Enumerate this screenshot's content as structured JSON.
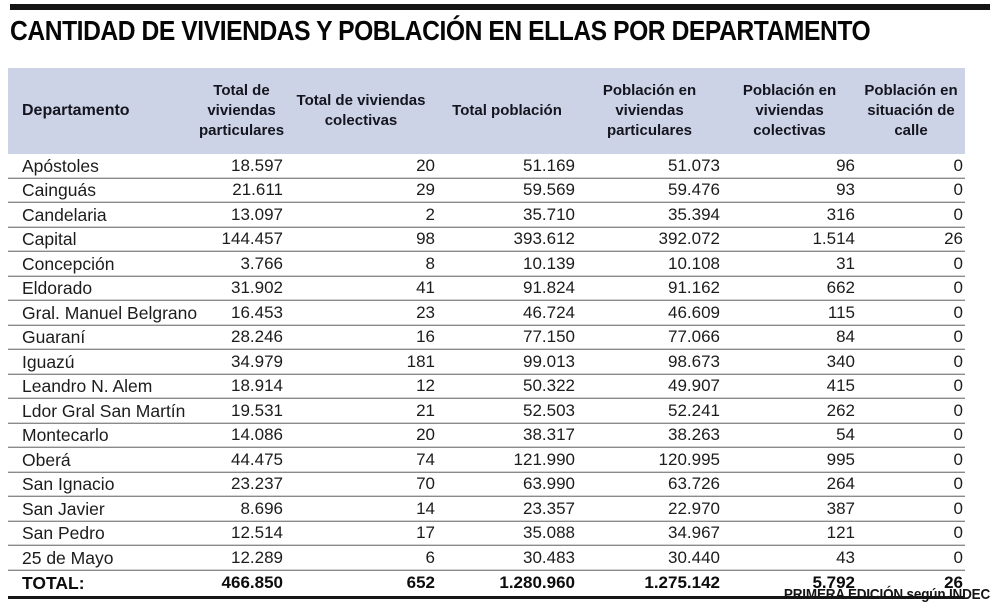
{
  "title": "CANTIDAD DE VIVIENDAS Y POBLACIÓN EN ELLAS POR DEPARTAMENTO",
  "source_note": "PRIMERA EDICIÓN según INDEC",
  "colors": {
    "header_bg": "#ccd3e6",
    "top_bar": "#141414",
    "row_rule_dark": "#8a8a8a",
    "row_rule_light": "#d2d2d2",
    "total_rule": "#161616"
  },
  "chart_data": {
    "type": "table",
    "title": "CANTIDAD DE VIVIENDAS Y POBLACIÓN EN ELLAS POR DEPARTAMENTO",
    "source": "PRIMERA EDICIÓN según INDEC",
    "columns": [
      "Departamento",
      "Total de viviendas particulares",
      "Total de viviendas colectivas",
      "Total población",
      "Población en viviendas particulares",
      "Población en viviendas colectivas",
      "Población en situación de calle"
    ],
    "rows": [
      [
        "Apóstoles",
        "18.597",
        "20",
        "51.169",
        "51.073",
        "96",
        "0"
      ],
      [
        "Cainguás",
        "21.611",
        "29",
        "59.569",
        "59.476",
        "93",
        "0"
      ],
      [
        "Candelaria",
        "13.097",
        "2",
        "35.710",
        "35.394",
        "316",
        "0"
      ],
      [
        "Capital",
        "144.457",
        "98",
        "393.612",
        "392.072",
        "1.514",
        "26"
      ],
      [
        "Concepción",
        "3.766",
        "8",
        "10.139",
        "10.108",
        "31",
        "0"
      ],
      [
        "Eldorado",
        "31.902",
        "41",
        "91.824",
        "91.162",
        "662",
        "0"
      ],
      [
        "Gral. Manuel Belgrano",
        "16.453",
        "23",
        "46.724",
        "46.609",
        "115",
        "0"
      ],
      [
        "Guaraní",
        "28.246",
        "16",
        "77.150",
        "77.066",
        "84",
        "0"
      ],
      [
        "Iguazú",
        "34.979",
        "181",
        "99.013",
        "98.673",
        "340",
        "0"
      ],
      [
        "Leandro N. Alem",
        "18.914",
        "12",
        "50.322",
        "49.907",
        "415",
        "0"
      ],
      [
        "Ldor Gral San Martín",
        "19.531",
        "21",
        "52.503",
        "52.241",
        "262",
        "0"
      ],
      [
        "Montecarlo",
        "14.086",
        "20",
        "38.317",
        "38.263",
        "54",
        "0"
      ],
      [
        "Oberá",
        "44.475",
        "74",
        "121.990",
        "120.995",
        "995",
        "0"
      ],
      [
        "San Ignacio",
        "23.237",
        "70",
        "63.990",
        "63.726",
        "264",
        "0"
      ],
      [
        "San Javier",
        "8.696",
        "14",
        "23.357",
        "22.970",
        "387",
        "0"
      ],
      [
        "San Pedro",
        "12.514",
        "17",
        "35.088",
        "34.967",
        "121",
        "0"
      ],
      [
        "25 de Mayo",
        "12.289",
        "6",
        "30.483",
        "30.440",
        "43",
        "0"
      ]
    ],
    "total_row": [
      "TOTAL:",
      "466.850",
      "652",
      "1.280.960",
      "1.275.142",
      "5.792",
      "26"
    ]
  }
}
